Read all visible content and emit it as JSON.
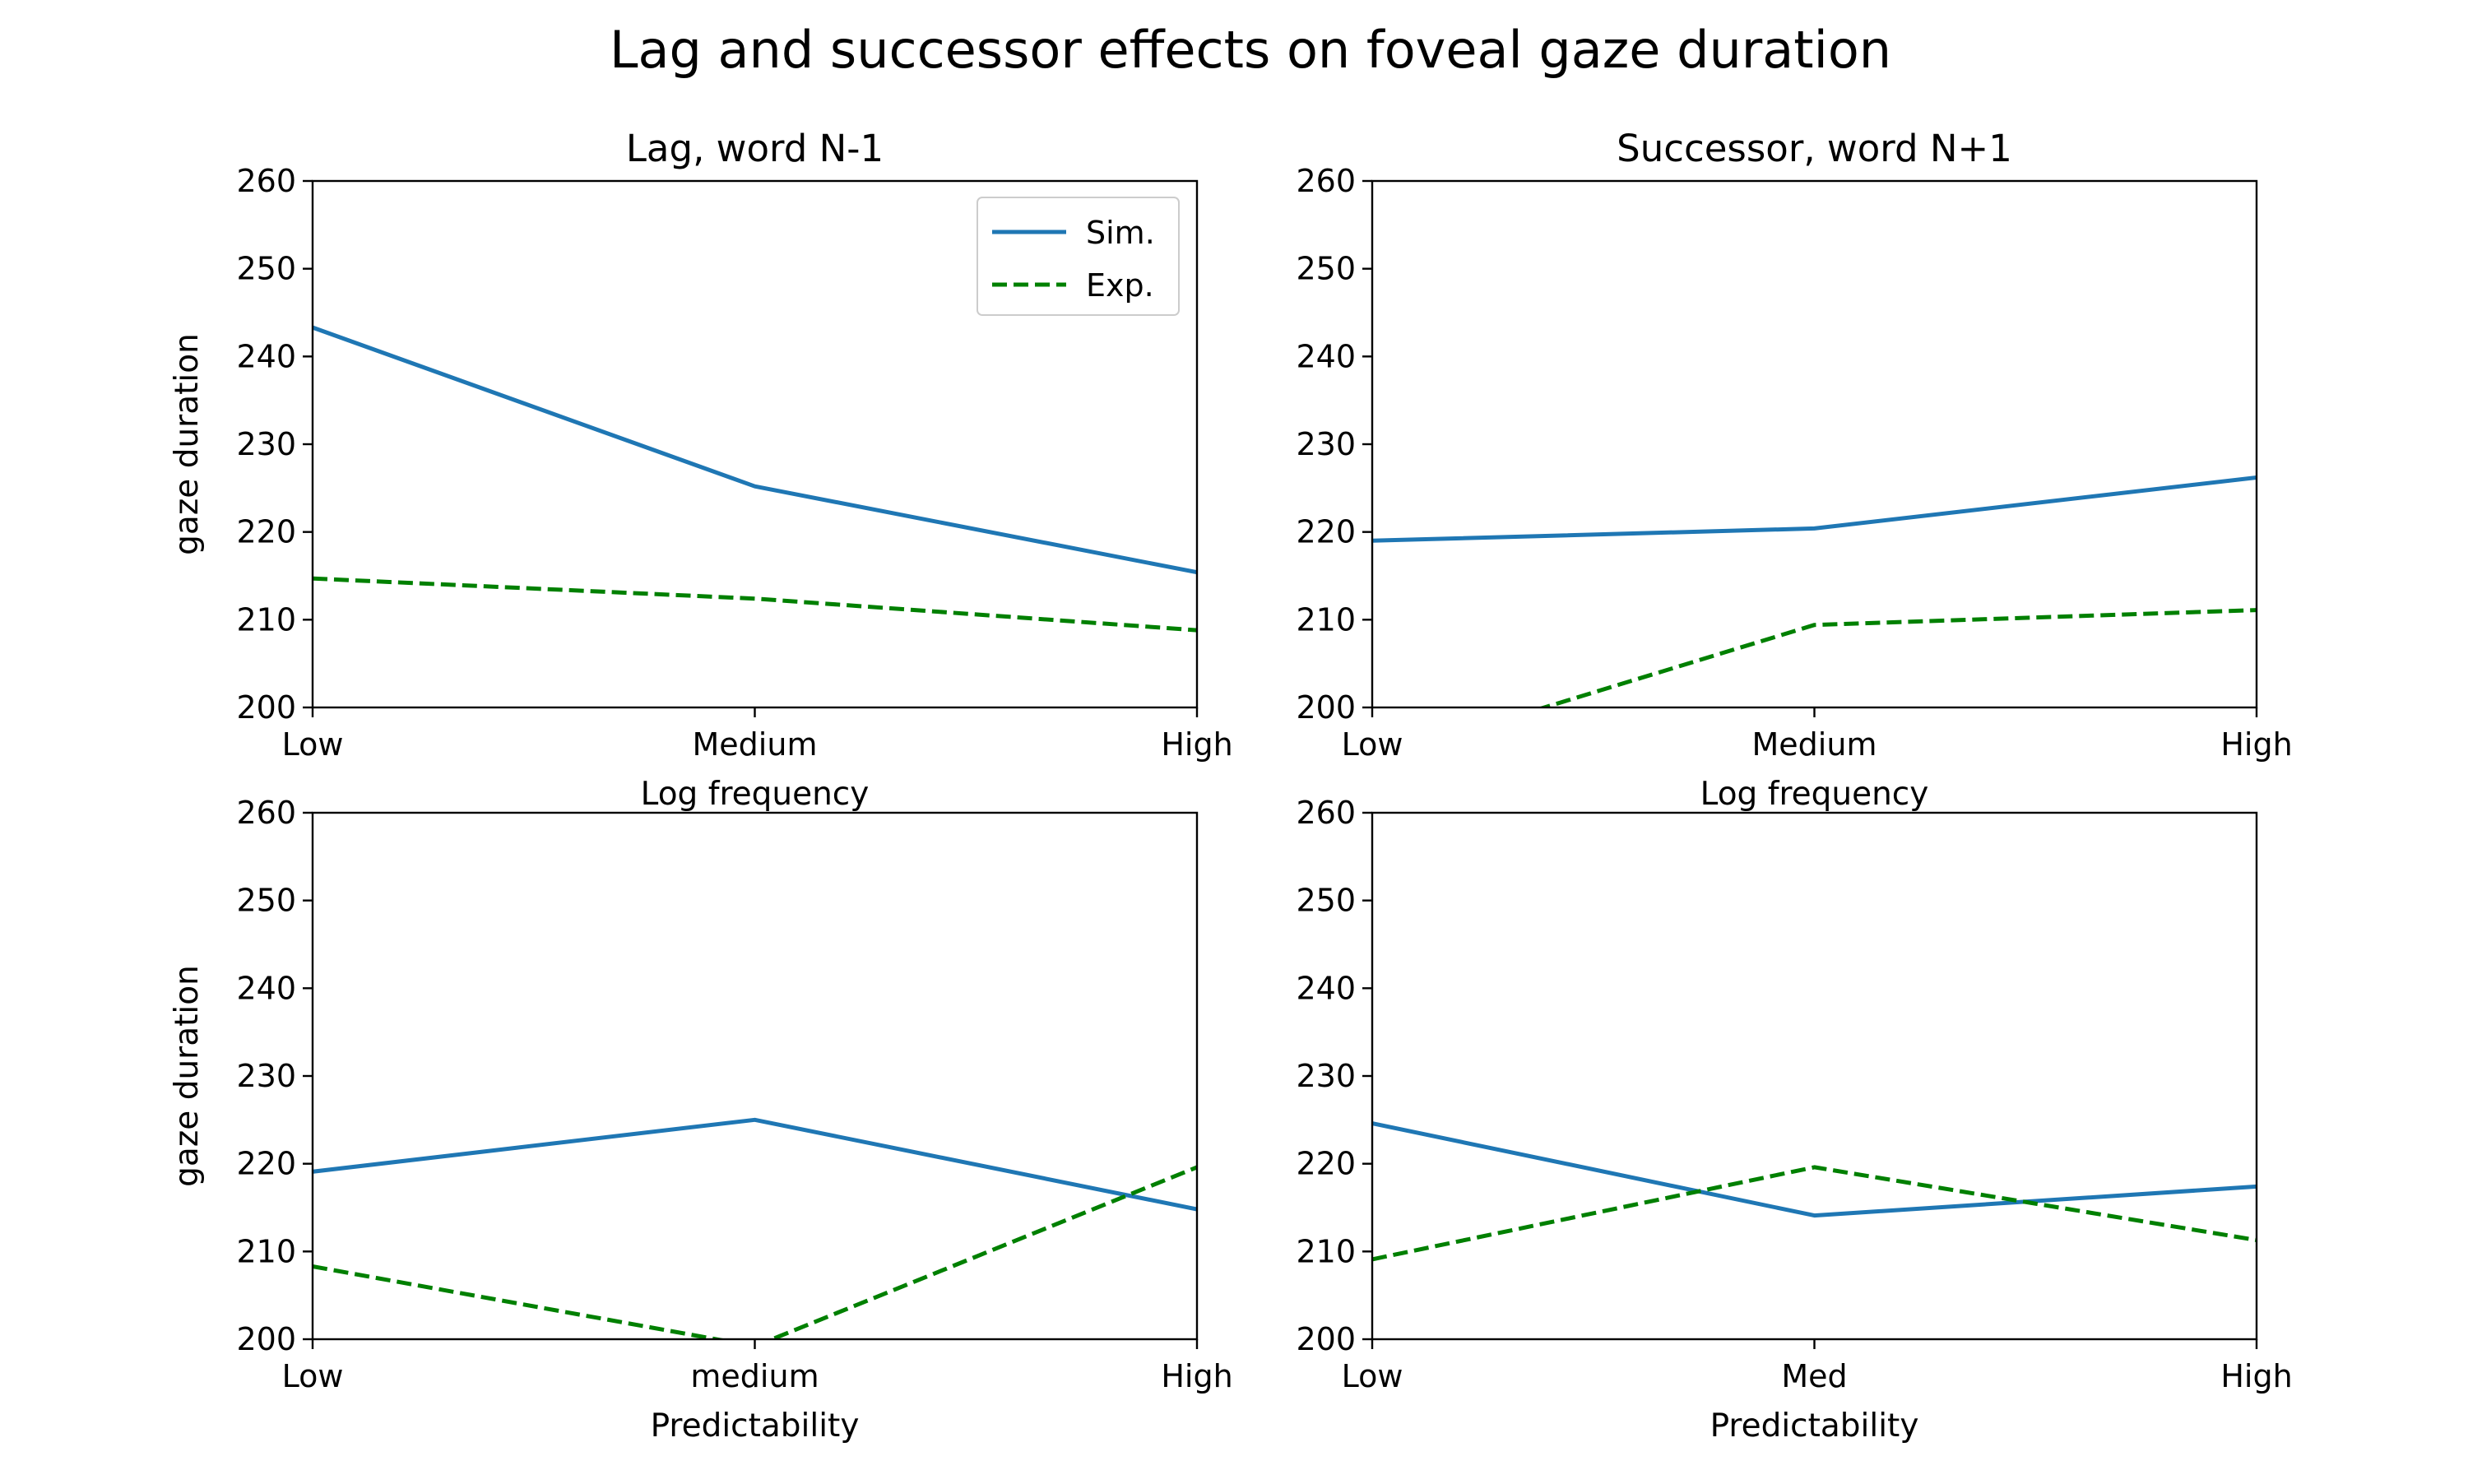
{
  "figure": {
    "title": "Lag and successor effects on foveal gaze duration"
  },
  "legend": {
    "entries": [
      {
        "label": "Sim.",
        "color": "#1f77b4",
        "dash": "solid"
      },
      {
        "label": "Exp.",
        "color": "#008000",
        "dash": "dashed"
      }
    ]
  },
  "chart_data": [
    {
      "type": "line",
      "title": "Lag, word N-1",
      "categories": [
        "Low",
        "Medium",
        "High"
      ],
      "xlabel": "Log frequency",
      "ylabel": "gaze duration",
      "ylim": [
        200,
        260
      ],
      "yticks": [
        200,
        210,
        220,
        230,
        240,
        250,
        260
      ],
      "legend": "top-right",
      "grid": false,
      "series": [
        {
          "name": "Sim.",
          "values": [
            243.3,
            225.2,
            215.4
          ]
        },
        {
          "name": "Exp.",
          "values": [
            214.7,
            212.4,
            208.8
          ]
        }
      ]
    },
    {
      "type": "line",
      "title": "Successor, word N+1",
      "categories": [
        "Low",
        "Medium",
        "High"
      ],
      "xlabel": "Log frequency",
      "ylabel": "",
      "ylim": [
        200,
        260
      ],
      "yticks": [
        200,
        210,
        220,
        230,
        240,
        250,
        260
      ],
      "grid": false,
      "series": [
        {
          "name": "Sim.",
          "values": [
            219.0,
            220.4,
            226.2
          ]
        },
        {
          "name": "Exp.",
          "values": [
            194.0,
            209.4,
            211.1
          ]
        }
      ]
    },
    {
      "type": "line",
      "title": "",
      "categories": [
        "Low",
        "medium",
        "High"
      ],
      "xlabel": "Predictability",
      "ylabel": "gaze duration",
      "ylim": [
        200,
        260
      ],
      "yticks": [
        200,
        210,
        220,
        230,
        240,
        250,
        260
      ],
      "grid": false,
      "series": [
        {
          "name": "Sim.",
          "values": [
            219.1,
            225.0,
            214.8
          ]
        },
        {
          "name": "Exp.",
          "values": [
            208.3,
            199.2,
            219.6
          ]
        }
      ]
    },
    {
      "type": "line",
      "title": "",
      "categories": [
        "Low",
        "Med",
        "High"
      ],
      "xlabel": "Predictability",
      "ylabel": "",
      "ylim": [
        200,
        260
      ],
      "yticks": [
        200,
        210,
        220,
        230,
        240,
        250,
        260
      ],
      "grid": false,
      "series": [
        {
          "name": "Sim.",
          "values": [
            224.6,
            214.1,
            217.4
          ]
        },
        {
          "name": "Exp.",
          "values": [
            209.1,
            219.6,
            211.3
          ]
        }
      ]
    }
  ]
}
